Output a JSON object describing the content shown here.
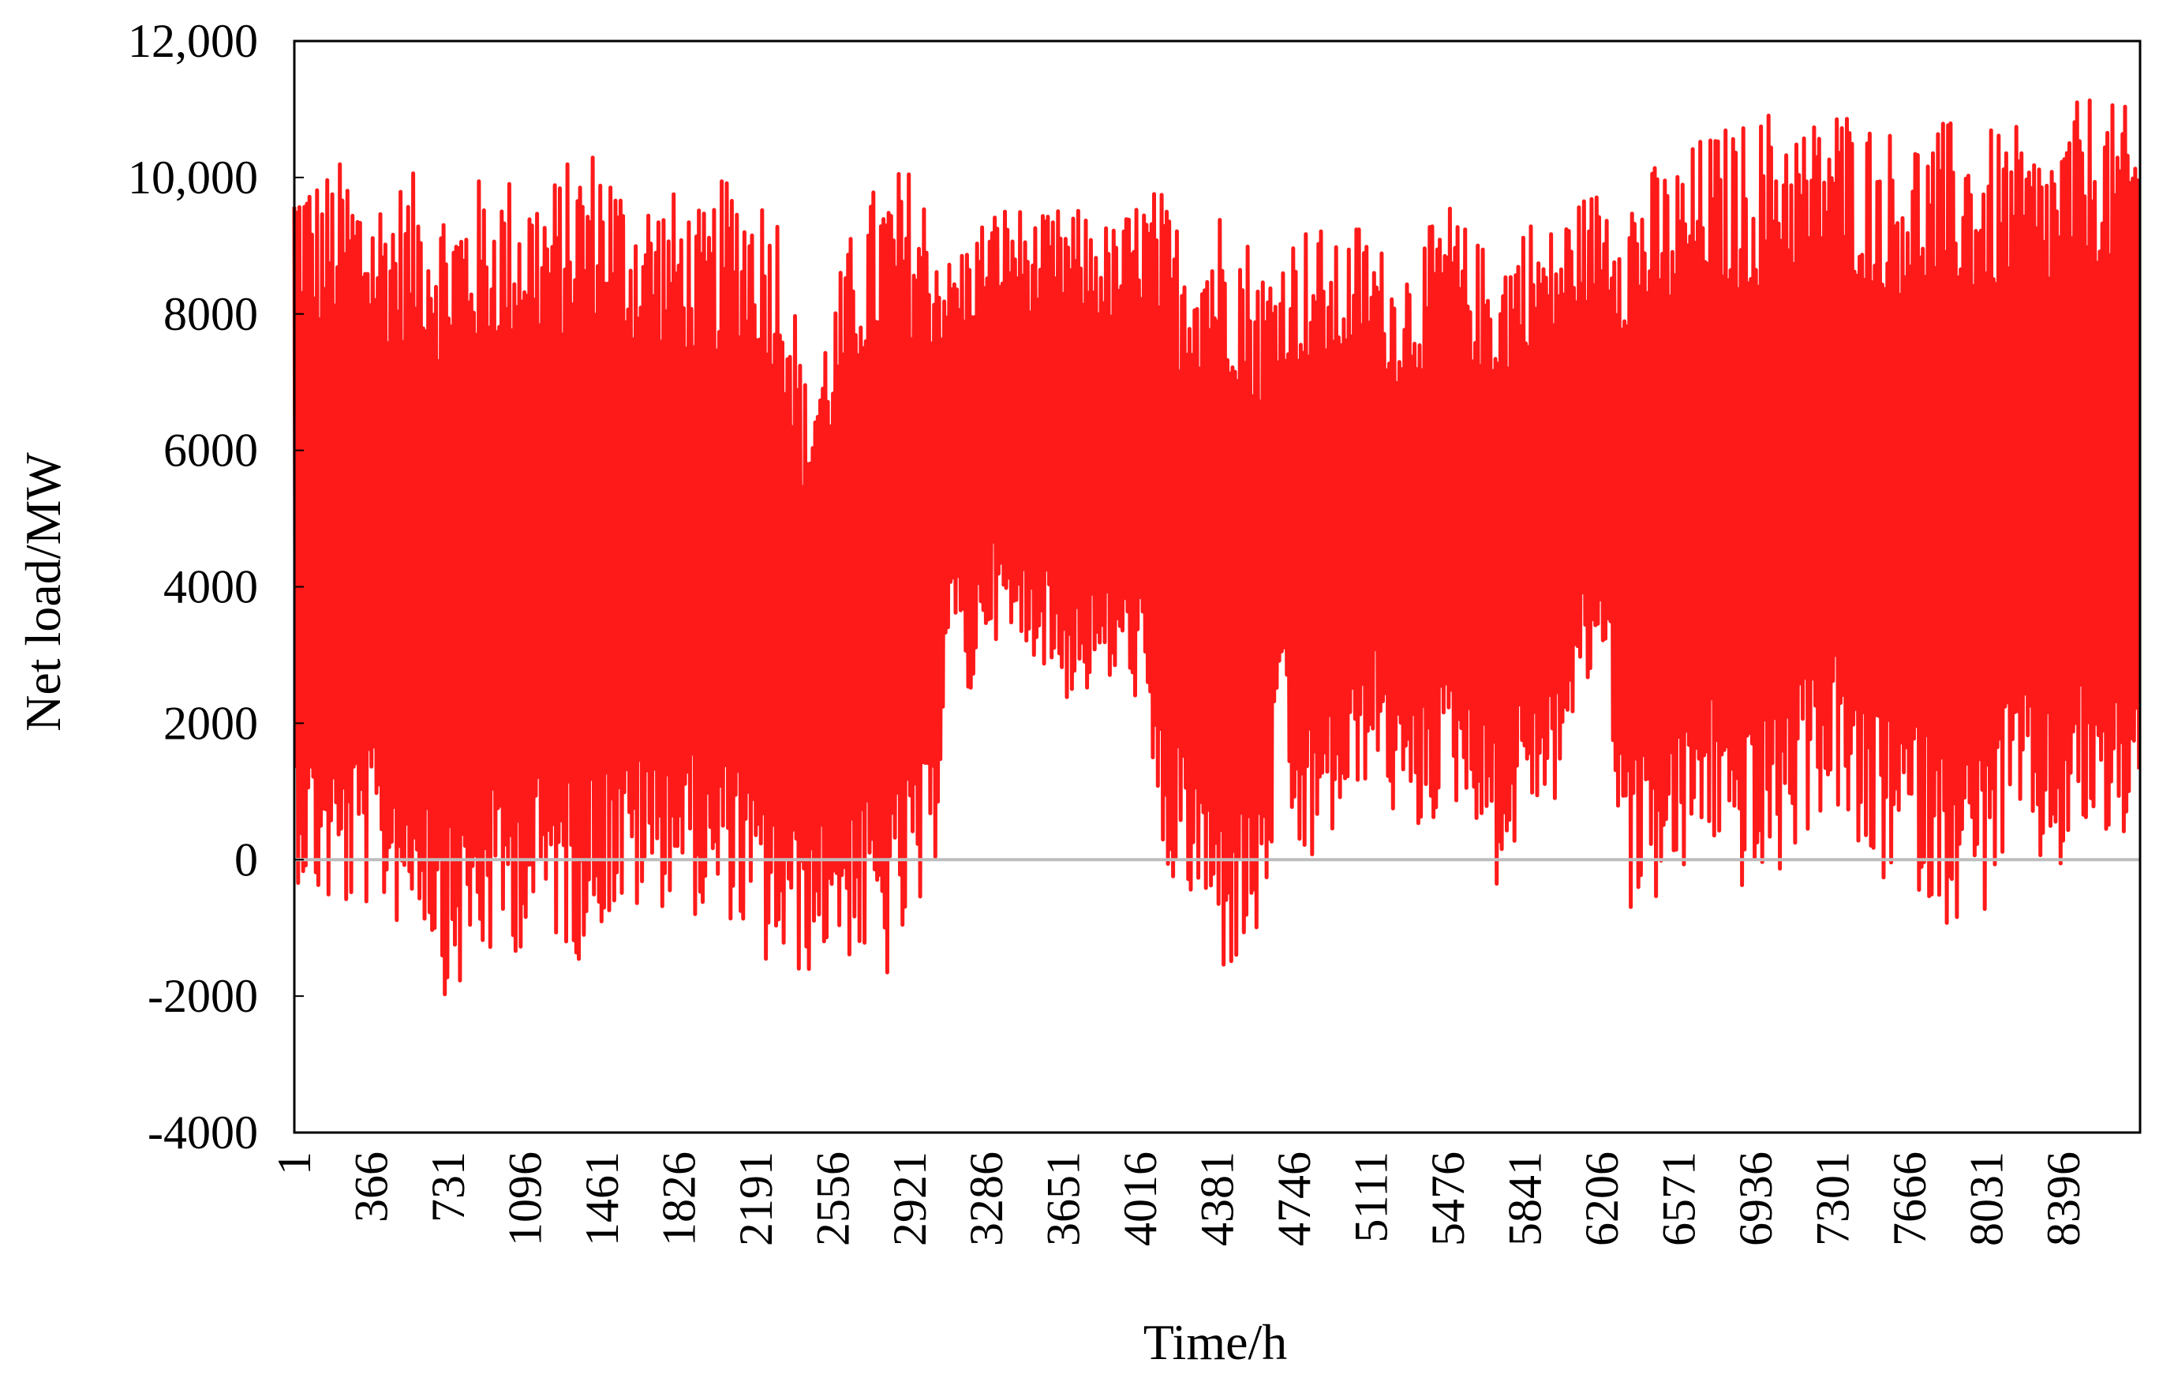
{
  "chart_data": {
    "type": "line",
    "title": "",
    "xlabel": "Time/h",
    "ylabel": "Net load/MW",
    "xlim": [
      1,
      8760
    ],
    "ylim": [
      -4000,
      12000
    ],
    "yticks": [
      -4000,
      -2000,
      0,
      2000,
      4000,
      6000,
      8000,
      10000,
      12000
    ],
    "ytick_labels": [
      "-4000",
      "-2000",
      "0",
      "2000",
      "4000",
      "6000",
      "8000",
      "10,000",
      "12,000"
    ],
    "xticks": [
      1,
      366,
      731,
      1096,
      1461,
      1826,
      2191,
      2556,
      2921,
      3286,
      3651,
      4016,
      4381,
      4746,
      5111,
      5476,
      5841,
      6206,
      6571,
      6936,
      7301,
      7666,
      8031,
      8396
    ],
    "xtick_labels": [
      "1",
      "366",
      "731",
      "1096",
      "1461",
      "1826",
      "2191",
      "2556",
      "2921",
      "3286",
      "3651",
      "4016",
      "4381",
      "4746",
      "5111",
      "5476",
      "5841",
      "6206",
      "6571",
      "6936",
      "7301",
      "7666",
      "8031",
      "8396"
    ],
    "grid": false,
    "zero_line": true,
    "legend": "none",
    "series": [
      {
        "color": "#ff1a1a",
        "resolution_hours": 12,
        "note_bands": "each point pair [x, low, high] gives envelope of hourly values",
        "envelope": [
          [
            1,
            -300,
            10400
          ],
          [
            120,
            -800,
            10100
          ],
          [
            240,
            -900,
            10300
          ],
          [
            366,
            -700,
            9900
          ],
          [
            480,
            -1000,
            10000
          ],
          [
            600,
            -900,
            10100
          ],
          [
            731,
            -2200,
            9800
          ],
          [
            850,
            -1700,
            10000
          ],
          [
            970,
            -1500,
            10100
          ],
          [
            1096,
            -1300,
            10100
          ],
          [
            1220,
            -1200,
            10000
          ],
          [
            1340,
            -1500,
            10400
          ],
          [
            1461,
            -1000,
            10600
          ],
          [
            1580,
            -900,
            9900
          ],
          [
            1700,
            -800,
            9900
          ],
          [
            1826,
            -500,
            9800
          ],
          [
            1950,
            -1100,
            9500
          ],
          [
            2070,
            -900,
            10200
          ],
          [
            2191,
            -1600,
            10000
          ],
          [
            2310,
            -1800,
            9700
          ],
          [
            2430,
            -1700,
            7000
          ],
          [
            2556,
            -1300,
            8300
          ],
          [
            2680,
            -1600,
            9600
          ],
          [
            2800,
            -1900,
            10100
          ],
          [
            2921,
            -1200,
            10200
          ],
          [
            3020,
            -900,
            9800
          ],
          [
            3100,
            3300,
            8800
          ],
          [
            3200,
            2200,
            9200
          ],
          [
            3286,
            3400,
            9500
          ],
          [
            3400,
            2900,
            9700
          ],
          [
            3520,
            3000,
            9400
          ],
          [
            3651,
            2300,
            9600
          ],
          [
            3770,
            2400,
            9500
          ],
          [
            3900,
            2500,
            9300
          ],
          [
            4016,
            2300,
            9800
          ],
          [
            4100,
            -300,
            9900
          ],
          [
            4200,
            -600,
            9400
          ],
          [
            4300,
            -1000,
            9500
          ],
          [
            4381,
            -1700,
            9700
          ],
          [
            4480,
            -1700,
            9500
          ],
          [
            4600,
            -1200,
            8800
          ],
          [
            4680,
            1800,
            9000
          ],
          [
            4746,
            -300,
            9300
          ],
          [
            4850,
            -100,
            9400
          ],
          [
            4950,
            400,
            9000
          ],
          [
            5050,
            800,
            9400
          ],
          [
            5111,
            1500,
            9200
          ],
          [
            5220,
            500,
            8800
          ],
          [
            5330,
            300,
            9000
          ],
          [
            5476,
            800,
            9700
          ],
          [
            5600,
            600,
            9100
          ],
          [
            5720,
            -600,
            9000
          ],
          [
            5841,
            700,
            9500
          ],
          [
            5960,
            600,
            9300
          ],
          [
            6080,
            2000,
            9700
          ],
          [
            6206,
            3000,
            9900
          ],
          [
            6320,
            -800,
            10100
          ],
          [
            6440,
            -700,
            10200
          ],
          [
            6571,
            -500,
            10300
          ],
          [
            6700,
            300,
            10700
          ],
          [
            6820,
            -400,
            10800
          ],
          [
            6936,
            -600,
            10900
          ],
          [
            7060,
            -300,
            11200
          ],
          [
            7180,
            400,
            10800
          ],
          [
            7301,
            800,
            11200
          ],
          [
            7420,
            -300,
            11000
          ],
          [
            7540,
            -400,
            10800
          ],
          [
            7666,
            -300,
            10700
          ],
          [
            7790,
            -900,
            10800
          ],
          [
            7910,
            -1000,
            10900
          ],
          [
            8031,
            -800,
            10700
          ],
          [
            8150,
            300,
            10800
          ],
          [
            8270,
            -200,
            10500
          ],
          [
            8396,
            -300,
            10800
          ],
          [
            8500,
            300,
            11300
          ],
          [
            8620,
            -100,
            11100
          ],
          [
            8760,
            600,
            11000
          ]
        ]
      }
    ]
  }
}
